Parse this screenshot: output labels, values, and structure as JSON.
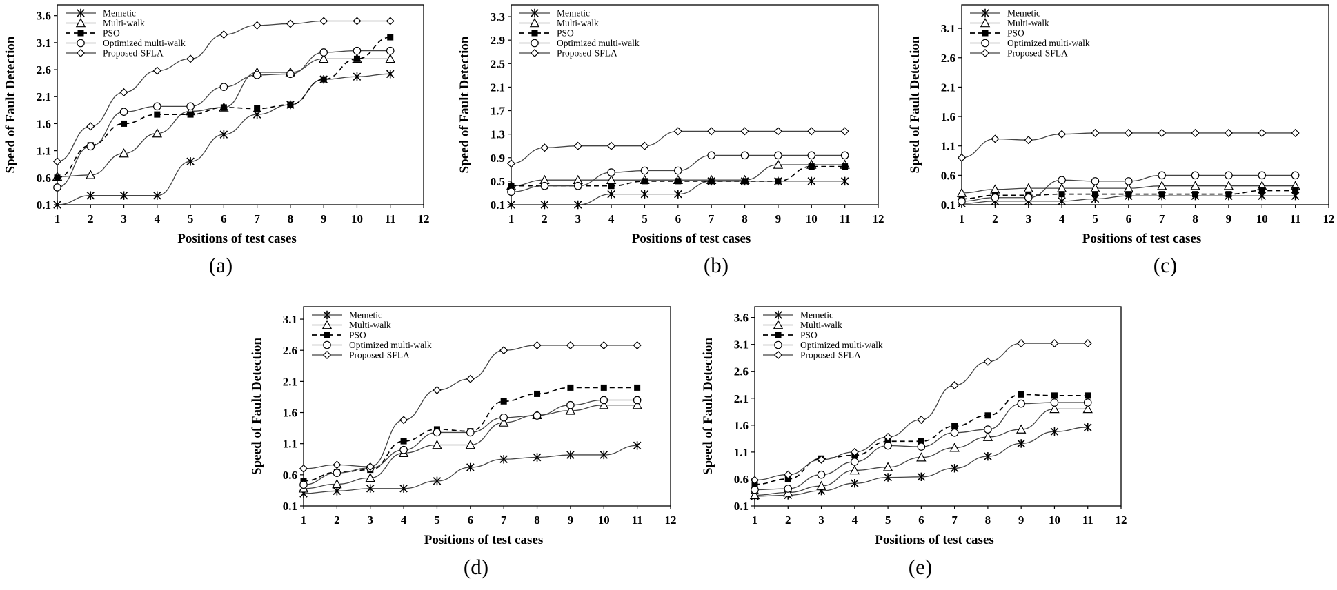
{
  "figure": {
    "ylabel": "Speed of Fault Detection",
    "xlabel": "Positions of test cases",
    "legend": [
      "Memetic",
      "Multi-walk",
      "PSO",
      "Optimized multi-walk",
      "Proposed-SFLA"
    ]
  },
  "chart_data": [
    {
      "type": "line",
      "caption": "(a)",
      "xlabel": "Positions of test cases",
      "ylabel": "Speed of Fault Detection",
      "xlim": [
        1,
        12
      ],
      "xticks": [
        "1",
        "2",
        "3",
        "4",
        "5",
        "6",
        "7",
        "8",
        "9",
        "10",
        "11",
        "12"
      ],
      "ylim": [
        0.1,
        3.8
      ],
      "yticks": [
        "0.1",
        "0.6",
        "1.1",
        "1.6",
        "2.1",
        "2.6",
        "3.1",
        "3.6"
      ],
      "legend_position": "top-left",
      "x": [
        1,
        2,
        3,
        4,
        5,
        6,
        7,
        8,
        9,
        10,
        11
      ],
      "series": [
        {
          "name": "Memetic",
          "values": [
            0.1,
            0.27,
            0.27,
            0.27,
            0.9,
            1.4,
            1.77,
            1.95,
            2.42,
            2.47,
            2.52
          ]
        },
        {
          "name": "Multi-walk",
          "values": [
            0.62,
            0.65,
            1.05,
            1.42,
            1.83,
            1.9,
            2.55,
            2.55,
            2.8,
            2.8,
            2.8
          ]
        },
        {
          "name": "PSO",
          "values": [
            0.6,
            1.2,
            1.6,
            1.77,
            1.77,
            1.9,
            1.88,
            1.95,
            2.42,
            2.8,
            3.2
          ]
        },
        {
          "name": "Optimized multi-walk",
          "values": [
            0.42,
            1.18,
            1.82,
            1.92,
            1.92,
            2.28,
            2.5,
            2.52,
            2.92,
            2.95,
            2.95
          ]
        },
        {
          "name": "Proposed-SFLA",
          "values": [
            0.9,
            1.55,
            2.18,
            2.58,
            2.8,
            3.25,
            3.42,
            3.45,
            3.5,
            3.5,
            3.5
          ]
        }
      ]
    },
    {
      "type": "line",
      "caption": "(b)",
      "xlabel": "Positions of test cases",
      "ylabel": "Speed of Fault Detection",
      "xlim": [
        1,
        12
      ],
      "xticks": [
        "1",
        "2",
        "3",
        "4",
        "5",
        "6",
        "7",
        "8",
        "9",
        "10",
        "11",
        "12"
      ],
      "ylim": [
        0.1,
        3.5
      ],
      "yticks": [
        "0.1",
        "0.5",
        "0.9",
        "1.3",
        "1.7",
        "2.1",
        "2.5",
        "2.9",
        "3.3"
      ],
      "legend_position": "top-left",
      "x": [
        1,
        2,
        3,
        4,
        5,
        6,
        7,
        8,
        9,
        10,
        11
      ],
      "series": [
        {
          "name": "Memetic",
          "values": [
            0.1,
            0.1,
            0.1,
            0.28,
            0.28,
            0.28,
            0.5,
            0.5,
            0.5,
            0.5,
            0.5
          ]
        },
        {
          "name": "Multi-walk",
          "values": [
            0.42,
            0.52,
            0.52,
            0.52,
            0.52,
            0.52,
            0.52,
            0.52,
            0.78,
            0.78,
            0.78
          ]
        },
        {
          "name": "PSO",
          "values": [
            0.42,
            0.42,
            0.42,
            0.42,
            0.5,
            0.5,
            0.5,
            0.5,
            0.5,
            0.75,
            0.75
          ]
        },
        {
          "name": "Optimized multi-walk",
          "values": [
            0.32,
            0.42,
            0.42,
            0.65,
            0.68,
            0.68,
            0.94,
            0.94,
            0.94,
            0.94,
            0.94
          ]
        },
        {
          "name": "Proposed-SFLA",
          "values": [
            0.8,
            1.07,
            1.1,
            1.1,
            1.1,
            1.35,
            1.35,
            1.35,
            1.35,
            1.35,
            1.35
          ]
        }
      ]
    },
    {
      "type": "line",
      "caption": "(c)",
      "xlabel": "Positions of test cases",
      "ylabel": "Speed of Fault Detection",
      "xlim": [
        1,
        12
      ],
      "xticks": [
        "1",
        "2",
        "3",
        "4",
        "5",
        "6",
        "7",
        "8",
        "9",
        "10",
        "11",
        "12"
      ],
      "ylim": [
        0.1,
        3.5
      ],
      "yticks": [
        "0.1",
        "0.6",
        "1.1",
        "1.6",
        "2.1",
        "2.6",
        "3.1"
      ],
      "legend_position": "top-left",
      "x": [
        1,
        2,
        3,
        4,
        5,
        6,
        7,
        8,
        9,
        10,
        11
      ],
      "series": [
        {
          "name": "Memetic",
          "values": [
            0.12,
            0.16,
            0.16,
            0.16,
            0.2,
            0.25,
            0.25,
            0.25,
            0.25,
            0.25,
            0.25
          ]
        },
        {
          "name": "Multi-walk",
          "values": [
            0.3,
            0.36,
            0.38,
            0.38,
            0.38,
            0.38,
            0.42,
            0.42,
            0.42,
            0.42,
            0.42
          ]
        },
        {
          "name": "PSO",
          "values": [
            0.2,
            0.26,
            0.26,
            0.28,
            0.28,
            0.28,
            0.28,
            0.28,
            0.28,
            0.34,
            0.34
          ]
        },
        {
          "name": "Optimized multi-walk",
          "values": [
            0.16,
            0.22,
            0.22,
            0.52,
            0.5,
            0.5,
            0.6,
            0.6,
            0.6,
            0.6,
            0.6
          ]
        },
        {
          "name": "Proposed-SFLA",
          "values": [
            0.9,
            1.22,
            1.2,
            1.3,
            1.32,
            1.32,
            1.32,
            1.32,
            1.32,
            1.32,
            1.32
          ]
        }
      ]
    },
    {
      "type": "line",
      "caption": "(d)",
      "xlabel": "Positions of test cases",
      "ylabel": "Speed of Fault Detection",
      "xlim": [
        1,
        12
      ],
      "xticks": [
        "1",
        "2",
        "3",
        "4",
        "5",
        "6",
        "7",
        "8",
        "9",
        "10",
        "11",
        "12"
      ],
      "ylim": [
        0.1,
        3.3
      ],
      "yticks": [
        "0.1",
        "0.6",
        "1.1",
        "1.6",
        "2.1",
        "2.6",
        "3.1"
      ],
      "legend_position": "top-left",
      "x": [
        1,
        2,
        3,
        4,
        5,
        6,
        7,
        8,
        9,
        10,
        11
      ],
      "series": [
        {
          "name": "Memetic",
          "values": [
            0.3,
            0.34,
            0.38,
            0.38,
            0.5,
            0.72,
            0.85,
            0.88,
            0.92,
            0.92,
            1.07
          ]
        },
        {
          "name": "Multi-walk",
          "values": [
            0.38,
            0.45,
            0.55,
            0.95,
            1.08,
            1.08,
            1.44,
            1.56,
            1.63,
            1.72,
            1.72
          ]
        },
        {
          "name": "PSO",
          "values": [
            0.5,
            0.64,
            0.68,
            1.14,
            1.33,
            1.3,
            1.78,
            1.9,
            2.0,
            2.0,
            2.0
          ]
        },
        {
          "name": "Optimized multi-walk",
          "values": [
            0.44,
            0.63,
            0.71,
            1.0,
            1.28,
            1.28,
            1.52,
            1.55,
            1.72,
            1.8,
            1.8
          ]
        },
        {
          "name": "Proposed-SFLA",
          "values": [
            0.7,
            0.76,
            0.73,
            1.48,
            1.96,
            2.14,
            2.6,
            2.68,
            2.68,
            2.68,
            2.68
          ]
        }
      ]
    },
    {
      "type": "line",
      "caption": "(e)",
      "xlabel": "Positions of test cases",
      "ylabel": "Speed of Fault Detection",
      "xlim": [
        1,
        12
      ],
      "xticks": [
        "1",
        "2",
        "3",
        "4",
        "5",
        "6",
        "7",
        "8",
        "9",
        "10",
        "11",
        "12"
      ],
      "ylim": [
        0.1,
        3.8
      ],
      "yticks": [
        "0.1",
        "0.6",
        "1.1",
        "1.6",
        "2.1",
        "2.6",
        "3.1",
        "3.6"
      ],
      "legend_position": "top-left",
      "x": [
        1,
        2,
        3,
        4,
        5,
        6,
        7,
        8,
        9,
        10,
        11
      ],
      "series": [
        {
          "name": "Memetic",
          "values": [
            0.28,
            0.3,
            0.38,
            0.52,
            0.63,
            0.64,
            0.8,
            1.02,
            1.26,
            1.48,
            1.56
          ]
        },
        {
          "name": "Multi-walk",
          "values": [
            0.3,
            0.35,
            0.47,
            0.76,
            0.82,
            1.0,
            1.18,
            1.38,
            1.52,
            1.9,
            1.9
          ]
        },
        {
          "name": "PSO",
          "values": [
            0.5,
            0.6,
            0.98,
            1.04,
            1.3,
            1.3,
            1.58,
            1.78,
            2.17,
            2.15,
            2.15
          ]
        },
        {
          "name": "Optimized multi-walk",
          "values": [
            0.4,
            0.42,
            0.68,
            0.92,
            1.22,
            1.2,
            1.46,
            1.52,
            2.0,
            2.02,
            2.02
          ]
        },
        {
          "name": "Proposed-SFLA",
          "values": [
            0.58,
            0.68,
            0.96,
            1.1,
            1.38,
            1.7,
            2.34,
            2.78,
            3.12,
            3.12,
            3.12
          ]
        }
      ]
    }
  ]
}
